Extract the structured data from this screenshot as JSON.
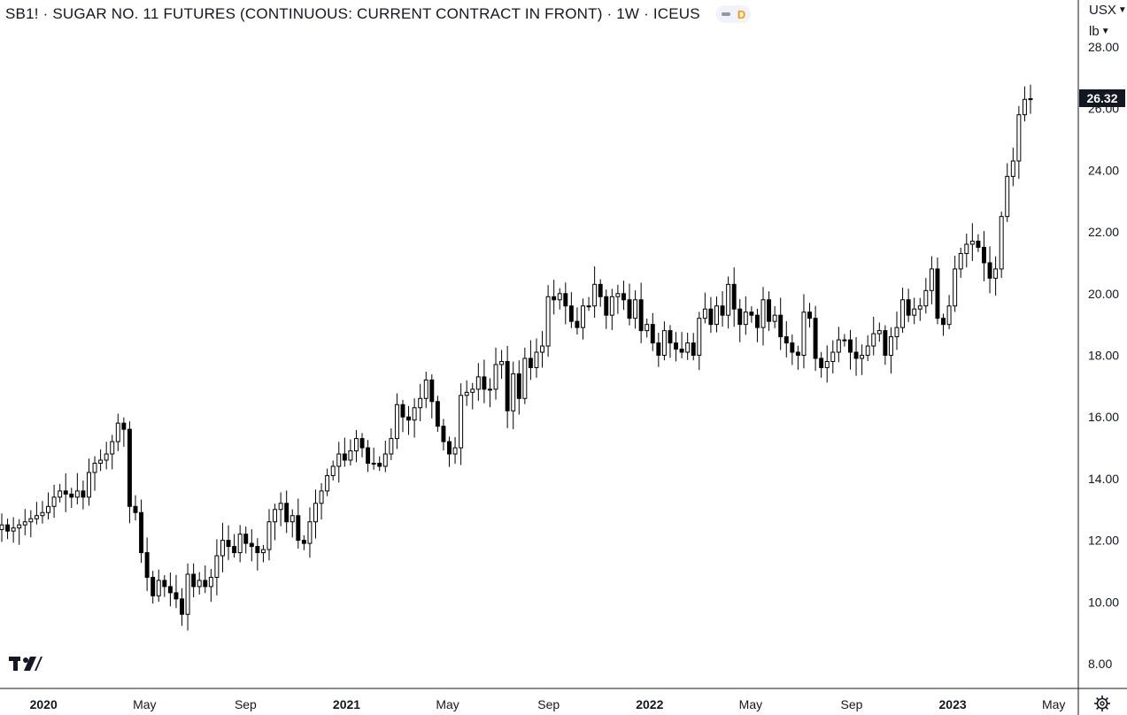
{
  "header": {
    "title": "SB1! · SUGAR NO. 11 FUTURES (CONTINUOUS: CURRENT CONTRACT IN FRONT) · 1W · ICEUS",
    "badge_letter": "D"
  },
  "scale": {
    "currency": "USX",
    "unit": "lb"
  },
  "last_price_label": "26.32",
  "colors": {
    "up": "#ffffff",
    "down": "#000000",
    "wick": "#000000",
    "grid": "#ffffff",
    "axis_line": "#131722",
    "last_price_bg": "#131722",
    "badge_accent": "#ff9800"
  },
  "chart_data": {
    "type": "candlestick",
    "title": "SB1! · SUGAR NO. 11 FUTURES (CONTINUOUS: CURRENT CONTRACT IN FRONT) · 1W · ICEUS",
    "interval": "1W",
    "ylim": [
      7.2,
      28.5
    ],
    "y_ticks": [
      8,
      10,
      12,
      14,
      16,
      18,
      20,
      22,
      24,
      26,
      28
    ],
    "y_tick_labels": [
      "8.00",
      "10.00",
      "12.00",
      "14.00",
      "16.00",
      "18.00",
      "20.00",
      "22.00",
      "24.00",
      "26.00",
      "28.00"
    ],
    "x_ticks": [
      {
        "label": "2020",
        "bold": true,
        "x": "2020-01"
      },
      {
        "label": "May",
        "bold": false,
        "x": "2020-05"
      },
      {
        "label": "Sep",
        "bold": false,
        "x": "2020-09"
      },
      {
        "label": "2021",
        "bold": true,
        "x": "2021-01"
      },
      {
        "label": "May",
        "bold": false,
        "x": "2021-05"
      },
      {
        "label": "Sep",
        "bold": false,
        "x": "2021-09"
      },
      {
        "label": "2022",
        "bold": true,
        "x": "2022-01"
      },
      {
        "label": "May",
        "bold": false,
        "x": "2022-05"
      },
      {
        "label": "Sep",
        "bold": false,
        "x": "2022-09"
      },
      {
        "label": "2023",
        "bold": true,
        "x": "2023-01"
      },
      {
        "label": "May",
        "bold": false,
        "x": "2023-05"
      }
    ],
    "last_price": 26.32,
    "weekly_closes": [
      12.5,
      12.3,
      12.4,
      12.5,
      12.6,
      12.7,
      12.8,
      12.9,
      13.1,
      13.4,
      13.6,
      13.5,
      13.4,
      13.6,
      13.4,
      14.2,
      14.5,
      14.6,
      14.8,
      15.2,
      15.8,
      15.6,
      13.1,
      12.9,
      11.6,
      10.8,
      10.2,
      10.7,
      10.5,
      10.3,
      10.1,
      9.6,
      10.9,
      10.5,
      10.7,
      10.5,
      10.8,
      11.5,
      12.0,
      11.8,
      11.6,
      12.2,
      11.9,
      11.8,
      11.6,
      11.7,
      12.6,
      13.0,
      13.2,
      12.6,
      12.8,
      12.0,
      11.9,
      12.6,
      13.2,
      13.6,
      14.1,
      14.4,
      14.8,
      14.6,
      14.9,
      15.3,
      15.0,
      14.5,
      14.5,
      14.4,
      14.8,
      15.3,
      16.4,
      16.0,
      15.9,
      16.3,
      16.6,
      17.2,
      16.5,
      15.7,
      15.2,
      14.8,
      15.0,
      16.7,
      16.8,
      16.9,
      17.3,
      16.9,
      16.9,
      17.7,
      17.8,
      16.2,
      17.4,
      16.6,
      17.9,
      17.6,
      18.1,
      18.3,
      19.9,
      19.8,
      20.0,
      19.6,
      19.1,
      18.9,
      19.6,
      19.6,
      20.3,
      19.9,
      19.3,
      19.9,
      20.0,
      19.8,
      19.2,
      19.8,
      18.8,
      19.0,
      18.4,
      18.0,
      18.8,
      18.4,
      18.2,
      18.1,
      18.4,
      18.0,
      19.2,
      19.5,
      19.0,
      19.6,
      19.3,
      20.3,
      19.5,
      19.0,
      19.4,
      19.3,
      18.9,
      19.8,
      19.1,
      19.3,
      18.6,
      18.4,
      18.1,
      18.0,
      19.4,
      19.2,
      17.9,
      17.6,
      17.8,
      18.1,
      18.5,
      18.5,
      18.1,
      17.9,
      18.0,
      18.3,
      18.7,
      18.8,
      18.0,
      18.6,
      18.9,
      19.8,
      19.3,
      19.5,
      19.6,
      20.1,
      20.8,
      19.2,
      19.0,
      19.6,
      20.8,
      21.3,
      21.6,
      21.7,
      21.5,
      21.0,
      20.5,
      20.8,
      22.5,
      23.8,
      24.3,
      25.8,
      26.3,
      26.32
    ]
  }
}
